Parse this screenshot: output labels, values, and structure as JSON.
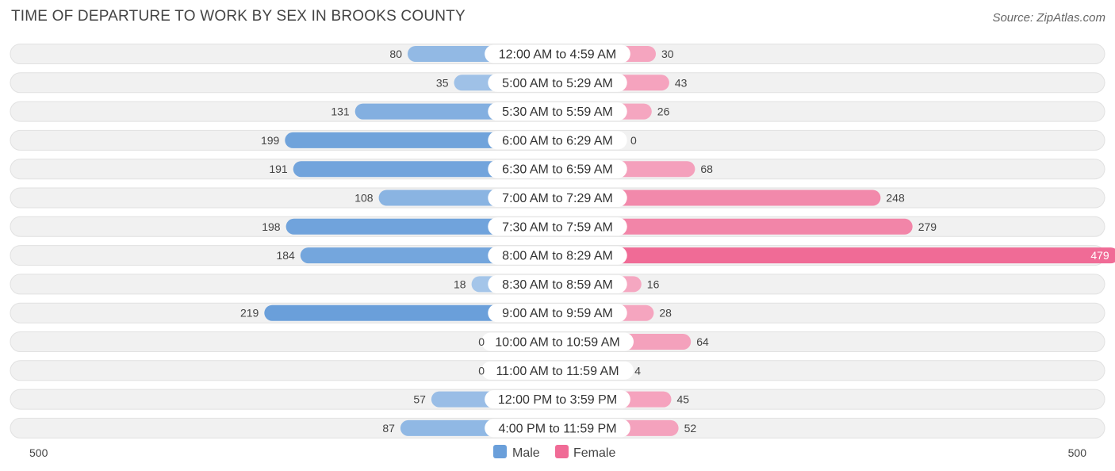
{
  "chart_data": {
    "type": "bar",
    "orientation": "horizontal-diverging",
    "title": "TIME OF DEPARTURE TO WORK BY SEX IN BROOKS COUNTY",
    "source": "Source: ZipAtlas.com",
    "categories": [
      "12:00 AM to 4:59 AM",
      "5:00 AM to 5:29 AM",
      "5:30 AM to 5:59 AM",
      "6:00 AM to 6:29 AM",
      "6:30 AM to 6:59 AM",
      "7:00 AM to 7:29 AM",
      "7:30 AM to 7:59 AM",
      "8:00 AM to 8:29 AM",
      "8:30 AM to 8:59 AM",
      "9:00 AM to 9:59 AM",
      "10:00 AM to 10:59 AM",
      "11:00 AM to 11:59 AM",
      "12:00 PM to 3:59 PM",
      "4:00 PM to 11:59 PM"
    ],
    "series": [
      {
        "name": "Male",
        "values": [
          80,
          35,
          131,
          199,
          191,
          108,
          198,
          184,
          18,
          219,
          0,
          0,
          57,
          87
        ]
      },
      {
        "name": "Female",
        "values": [
          30,
          43,
          26,
          0,
          68,
          248,
          279,
          479,
          16,
          28,
          64,
          4,
          45,
          52
        ]
      }
    ],
    "axis": {
      "left_label": "500",
      "right_label": "500",
      "max": 500
    },
    "legend": {
      "male_label": "Male",
      "female_label": "Female",
      "placement": "bottom-center"
    },
    "colors": {
      "male_light": "#a9c8ea",
      "male_dark": "#6a9fda",
      "female_light": "#f5a9c2",
      "female_dark": "#f06b96"
    }
  }
}
